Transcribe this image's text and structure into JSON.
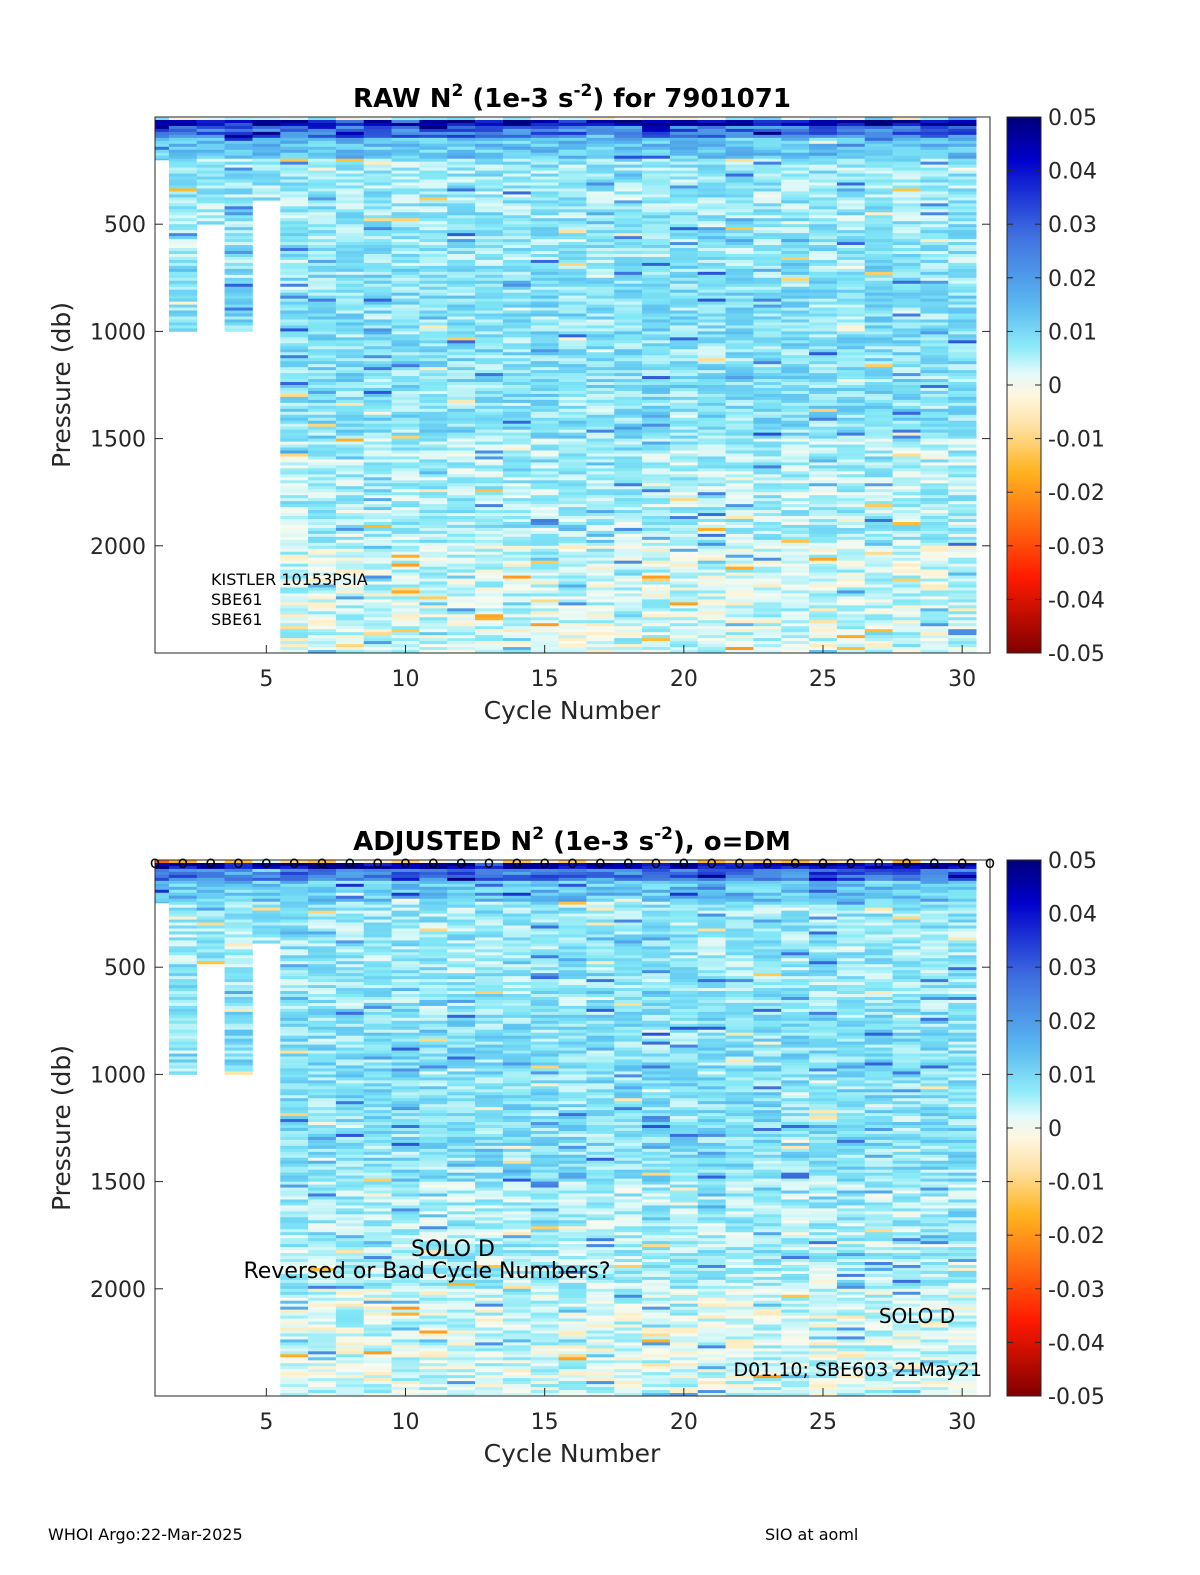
{
  "chart_data": [
    {
      "type": "heatmap",
      "title": "RAW N² (1e-3 s⁻²) for 7901071",
      "title_parts": {
        "a": "RAW N",
        "sup1": "2",
        "b": " (1e-3 s",
        "sup2": "-2",
        "c": ") for 7901071"
      },
      "xlabel": "Cycle Number",
      "ylabel": "Pressure (db)",
      "xlim": [
        1,
        31
      ],
      "ylim": [
        2500,
        0
      ],
      "xticks": [
        "5",
        "10",
        "15",
        "20",
        "25",
        "30"
      ],
      "yticks": [
        "500",
        "1000",
        "1500",
        "2000"
      ],
      "colorbar": {
        "ticks": [
          "0.05",
          "0.04",
          "0.03",
          "0.02",
          "0.01",
          "0",
          "-0.01",
          "-0.02",
          "-0.03",
          "-0.04",
          "-0.05"
        ],
        "range": [
          -0.05,
          0.05
        ]
      },
      "profile_max_pressure": [
        {
          "cycle": 1,
          "max": 200
        },
        {
          "cycle": 2,
          "max": 1000
        },
        {
          "cycle": 3,
          "max": 500
        },
        {
          "cycle": 4,
          "max": 1000
        },
        {
          "cycle": 5,
          "max": 390
        },
        {
          "cycle_from": 6,
          "max": 2500
        }
      ],
      "annotations": [
        "KISTLER 10153PSIA",
        "SBE61",
        "SBE61"
      ],
      "dm_markers": false
    },
    {
      "type": "heatmap",
      "title": "ADJUSTED N² (1e-3 s⁻²), o=DM",
      "title_parts": {
        "a": "ADJUSTED N",
        "sup1": "2",
        "b": " (1e-3 s",
        "sup2": "-2",
        "c": "), o=DM"
      },
      "xlabel": "Cycle Number",
      "ylabel": "Pressure (db)",
      "xlim": [
        1,
        31
      ],
      "ylim": [
        2500,
        0
      ],
      "xticks": [
        "5",
        "10",
        "15",
        "20",
        "25",
        "30"
      ],
      "yticks": [
        "500",
        "1000",
        "1500",
        "2000"
      ],
      "colorbar": {
        "ticks": [
          "0.05",
          "0.04",
          "0.03",
          "0.02",
          "0.01",
          "0",
          "-0.01",
          "-0.02",
          "-0.03",
          "-0.04",
          "-0.05"
        ],
        "range": [
          -0.05,
          0.05
        ]
      },
      "profile_max_pressure": [
        {
          "cycle": 1,
          "max": 200
        },
        {
          "cycle": 2,
          "max": 1000
        },
        {
          "cycle": 3,
          "max": 500
        },
        {
          "cycle": 4,
          "max": 1000
        },
        {
          "cycle": 5,
          "max": 390
        },
        {
          "cycle_from": 6,
          "max": 2500
        }
      ],
      "annotations": [
        "SOLO D",
        "Reversed or Bad Cycle Numbers?",
        "SOLO D",
        "D01.10; SBE603 21May21"
      ],
      "dm_marker_symbol": "o",
      "dm_markers": true
    }
  ],
  "footer": {
    "left": "WHOI Argo:22-Mar-2025",
    "right": "SIO at aoml"
  }
}
